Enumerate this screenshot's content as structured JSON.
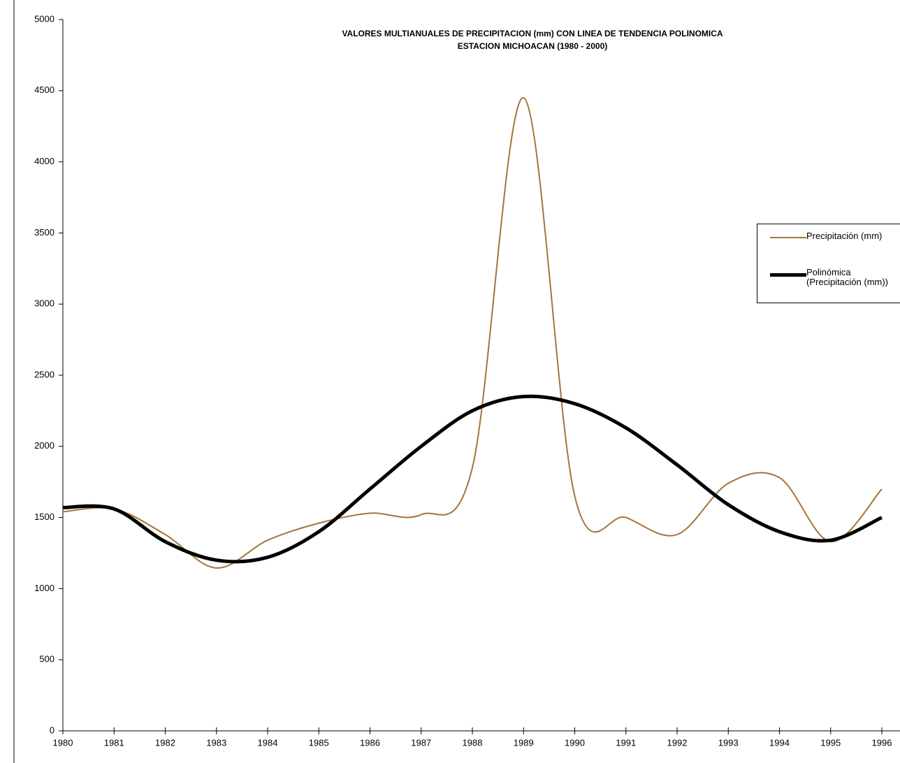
{
  "chart_data": {
    "type": "line",
    "title": "VALORES MULTIANUALES DE PRECIPITACION (mm) CON LINEA DE TENDENCIA POLINOMICA",
    "subtitle": "ESTACION MICHOACAN (1980 - 2000)",
    "categories": [
      "1980",
      "1981",
      "1982",
      "1983",
      "1984",
      "1985",
      "1986",
      "1987",
      "1988",
      "1989",
      "1990",
      "1991",
      "1992",
      "1993",
      "1994",
      "1995",
      "1996"
    ],
    "series": [
      {
        "name": "Precipitación (mm)",
        "color": "#a67439",
        "values": [
          1540,
          1560,
          1380,
          1145,
          1340,
          1460,
          1530,
          1520,
          1850,
          4450,
          1650,
          1500,
          1380,
          1740,
          1780,
          1330,
          1700
        ]
      },
      {
        "name": "Polinómica (Precipitación (mm))",
        "color": "#000000",
        "values": [
          1570,
          1560,
          1330,
          1200,
          1220,
          1400,
          1700,
          2000,
          2250,
          2350,
          2300,
          2130,
          1870,
          1590,
          1400,
          1340,
          1500
        ]
      }
    ],
    "ylim": [
      0,
      5000
    ],
    "yticks": [
      0,
      500,
      1000,
      1500,
      2000,
      2500,
      3000,
      3500,
      4000,
      4500,
      5000
    ],
    "legend": "right"
  }
}
